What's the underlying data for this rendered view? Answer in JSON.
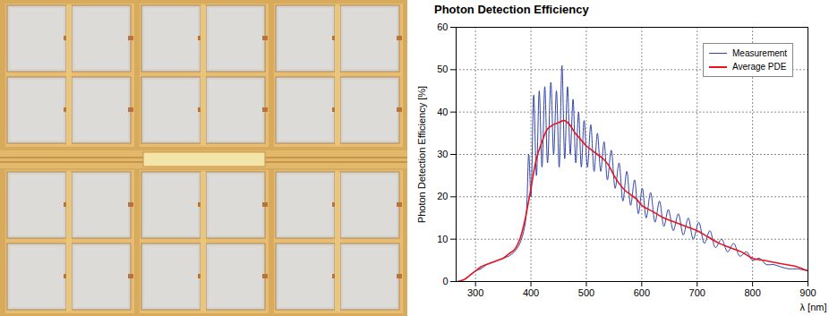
{
  "chart_data": {
    "type": "line",
    "title": "Photon Detection Efficiency",
    "x_label": "λ [nm]",
    "y_label": "Photon Detection Efficiency [%]",
    "xlim": [
      265,
      900
    ],
    "ylim": [
      0,
      60
    ],
    "xticks": [
      300,
      400,
      500,
      600,
      700,
      800,
      900
    ],
    "yticks": [
      0,
      10,
      20,
      30,
      40,
      50,
      60
    ],
    "grid": true,
    "legend": "top-right",
    "series": [
      {
        "name": "Measurement",
        "color": "#3344aa",
        "x": [
          265,
          280,
          290,
          300,
          310,
          320,
          330,
          340,
          350,
          360,
          370,
          380,
          390,
          396,
          400,
          405,
          410,
          415,
          420,
          425,
          430,
          436,
          441,
          446,
          451,
          456,
          461,
          466,
          471,
          476,
          481,
          486,
          491,
          496,
          502,
          508,
          514,
          520,
          526,
          532,
          538,
          545,
          552,
          559,
          566,
          573,
          580,
          587,
          594,
          601,
          608,
          616,
          624,
          632,
          640,
          648,
          657,
          666,
          675,
          684,
          693,
          703,
          713,
          723,
          733,
          744,
          755,
          766,
          777,
          789,
          800,
          812,
          825,
          838,
          850,
          865,
          880,
          900
        ],
        "values": [
          0,
          0.5,
          1.5,
          2.5,
          3,
          4,
          4.5,
          5,
          5.5,
          6,
          7,
          9,
          14,
          30,
          20,
          44,
          25,
          45,
          27,
          46,
          28,
          47,
          30,
          45,
          27,
          51,
          29,
          46,
          30,
          43,
          28,
          40,
          27,
          38,
          27,
          37,
          26,
          35,
          26,
          33,
          24,
          31,
          22,
          28,
          19,
          26,
          18,
          24,
          16,
          22,
          15,
          21,
          14,
          19,
          13,
          17,
          12,
          16,
          11,
          15,
          10,
          14,
          9,
          12,
          8,
          10,
          7,
          9,
          6,
          7,
          5,
          5.5,
          4,
          4,
          3.5,
          3,
          3,
          2.5
        ]
      },
      {
        "name": "Average PDE",
        "color": "#e8141e",
        "x": [
          270,
          280,
          290,
          300,
          310,
          320,
          330,
          340,
          350,
          360,
          370,
          380,
          390,
          400,
          410,
          420,
          430,
          440,
          450,
          460,
          470,
          480,
          490,
          500,
          510,
          520,
          530,
          540,
          550,
          560,
          570,
          580,
          590,
          600,
          620,
          640,
          660,
          680,
          700,
          720,
          740,
          760,
          780,
          800,
          820,
          840,
          860,
          880,
          900
        ],
        "values": [
          0,
          0.5,
          1.5,
          2.5,
          3.5,
          4,
          4.5,
          5,
          5.5,
          6.5,
          7.5,
          10,
          15,
          22,
          29,
          33,
          36,
          37,
          37.5,
          38,
          37,
          35,
          33.5,
          32,
          31,
          30,
          29,
          27.5,
          25,
          23,
          21.5,
          20.5,
          19.5,
          18,
          16.5,
          15,
          14,
          13,
          12,
          10.5,
          9,
          8,
          7,
          5.5,
          5,
          4.5,
          4,
          3.5,
          2.5
        ]
      }
    ]
  }
}
